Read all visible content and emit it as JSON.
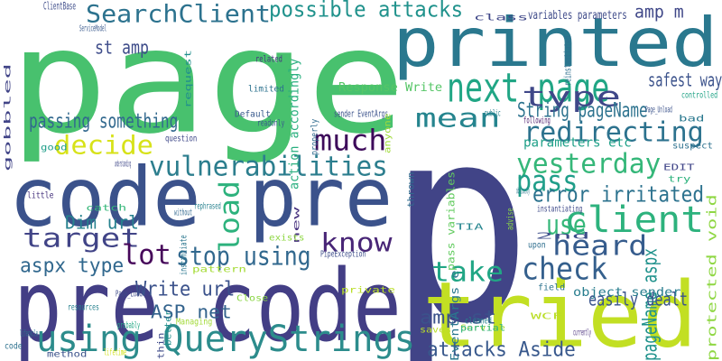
{
  "words": [
    {
      "text": "p",
      "color": "#414487"
    },
    {
      "text": "page",
      "color": "#48c16e"
    },
    {
      "text": "code pre",
      "color": "#3b528b"
    },
    {
      "text": "pre code",
      "color": "#433e85"
    },
    {
      "text": "printed",
      "color": "#2a788e"
    },
    {
      "text": "tried",
      "color": "#c2df23"
    },
    {
      "text": "using QueryStrings",
      "color": "#2c8c8c"
    },
    {
      "text": "next page",
      "color": "#21a685"
    },
    {
      "text": "vulnerabilities",
      "color": "#2c7e8e"
    },
    {
      "text": "client",
      "color": "#2db27d"
    },
    {
      "text": "SearchClient",
      "color": "#2c728e"
    },
    {
      "text": "possible attacks",
      "color": "#20928c"
    },
    {
      "text": "much",
      "color": "#3d0a5a"
    },
    {
      "text": "redirecting",
      "color": "#2c728e"
    },
    {
      "text": "yesterday",
      "color": "#35b779"
    },
    {
      "text": "mean",
      "color": "#25848e"
    },
    {
      "text": "type",
      "color": "#3f4788"
    },
    {
      "text": "decide",
      "color": "#d7e219"
    },
    {
      "text": "target",
      "color": "#414487"
    },
    {
      "text": "know",
      "color": "#482576"
    },
    {
      "text": "load",
      "color": "#2db27d"
    },
    {
      "text": "lot",
      "color": "#46075a"
    },
    {
      "text": "stop using",
      "color": "#31688e"
    },
    {
      "text": "heard",
      "color": "#365c8d"
    },
    {
      "text": "take",
      "color": "#21a685"
    },
    {
      "text": "check",
      "color": "#35608d"
    },
    {
      "text": "use",
      "color": "#35b779"
    },
    {
      "text": "pass",
      "color": "#1f9e89"
    },
    {
      "text": "error irritated",
      "color": "#2c728e"
    },
    {
      "text": "pageName aspx",
      "color": "#20928c"
    },
    {
      "text": "attacks Aside",
      "color": "#38588c"
    },
    {
      "text": "passing something",
      "color": "#31688e"
    },
    {
      "text": "String pageName",
      "color": "#2c728e"
    },
    {
      "text": "st amp",
      "color": "#3e4c8a"
    },
    {
      "text": "amp m",
      "color": "#3f4788"
    },
    {
      "text": "safest way",
      "color": "#3b528b"
    },
    {
      "text": "Dim url",
      "color": "#26818e"
    },
    {
      "text": "aspx type",
      "color": "#31688e"
    },
    {
      "text": "Write url",
      "color": "#3b528b"
    },
    {
      "text": "ASP net",
      "color": "#33638d"
    },
    {
      "text": "easily dealt",
      "color": "#3a548c"
    },
    {
      "text": "amp st",
      "color": "#3b528b"
    },
    {
      "text": "object sender",
      "color": "#287d8e"
    },
    {
      "text": "parameters etc",
      "color": "#1fa088"
    },
    {
      "text": "Response Write",
      "color": "#56c667"
    },
    {
      "text": "action accordingly",
      "color": "#29af7f"
    },
    {
      "text": "EventArgs e",
      "color": "#2a788e"
    },
    {
      "text": "pass variables",
      "color": "#62cb5f"
    },
    {
      "text": "protected void",
      "color": "#8fd744"
    },
    {
      "text": "variables parameters",
      "color": "#3e4a89"
    },
    {
      "text": "sender EventArgs",
      "color": "#3b528b"
    },
    {
      "text": "ClientBase",
      "color": "#3e4c8a"
    },
    {
      "text": "class",
      "color": "#3f4788"
    },
    {
      "text": "reinstantiated",
      "color": "#2e6f8e"
    },
    {
      "text": "ServiceModel",
      "color": "#38588c"
    },
    {
      "text": "related",
      "color": "#46337e"
    },
    {
      "text": "limited",
      "color": "#2c728e"
    },
    {
      "text": "Default",
      "color": "#38598c"
    },
    {
      "text": "readonly",
      "color": "#38598c"
    },
    {
      "text": "request",
      "color": "#218f8d"
    },
    {
      "text": "question",
      "color": "#3f4889"
    },
    {
      "text": "properly",
      "color": "#2f6b8e"
    },
    {
      "text": "anyone",
      "color": "#9fda3a"
    },
    {
      "text": "following",
      "color": "#481769"
    },
    {
      "text": "public",
      "color": "#26828e"
    },
    {
      "text": "bad",
      "color": "#2a788e"
    },
    {
      "text": "suspect",
      "color": "#2d718e"
    },
    {
      "text": "controlled",
      "color": "#20a386"
    },
    {
      "text": "Page_Unload",
      "color": "#3b528b"
    },
    {
      "text": "gobbled",
      "color": "#414487"
    },
    {
      "text": "understanding",
      "color": "#3f4788"
    },
    {
      "text": "good",
      "color": "#1f9e89"
    },
    {
      "text": "little",
      "color": "#46337e"
    },
    {
      "text": "catch",
      "color": "#35b779"
    },
    {
      "text": "rephrased",
      "color": "#26818e"
    },
    {
      "text": "without",
      "color": "#31688e"
    },
    {
      "text": "new",
      "color": "#46307e"
    },
    {
      "text": "exists",
      "color": "#8fd744"
    },
    {
      "text": "pattern",
      "color": "#a5db36"
    },
    {
      "text": "PipeException",
      "color": "#3d4d8a"
    },
    {
      "text": "instantiate",
      "color": "#2a768e"
    },
    {
      "text": "Close",
      "color": "#8bd646"
    },
    {
      "text": "private",
      "color": "#bade28"
    },
    {
      "text": "Page_Load",
      "color": "#3e4989"
    },
    {
      "text": "better",
      "color": "#218f8d"
    },
    {
      "text": "Managing",
      "color": "#a2da37"
    },
    {
      "text": "resources",
      "color": "#26818e"
    },
    {
      "text": "probably",
      "color": "#22a884"
    },
    {
      "text": "thin",
      "color": "#3e4a89"
    },
    {
      "text": "lifetime",
      "color": "#d2e21b"
    },
    {
      "text": "method",
      "color": "#3b528b"
    },
    {
      "text": "lifecycle",
      "color": "#2a788e"
    },
    {
      "text": "code",
      "color": "#2d718e"
    },
    {
      "text": "saves",
      "color": "#bade28"
    },
    {
      "text": "cleaned",
      "color": "#26828e"
    },
    {
      "text": "field",
      "color": "#2c728e"
    },
    {
      "text": "WCF",
      "color": "#bade28"
    },
    {
      "text": "Service",
      "color": "#a8db34"
    },
    {
      "text": "currently",
      "color": "#472d7b"
    },
    {
      "text": "TIA",
      "color": "#25858e"
    },
    {
      "text": "thrown",
      "color": "#2f6b8e"
    },
    {
      "text": "advise",
      "color": "#8bd646"
    },
    {
      "text": "upon",
      "color": "#2e6e8e"
    },
    {
      "text": "2nd",
      "color": "#3d4d8a"
    },
    {
      "text": "instantiating",
      "color": "#3e4989"
    },
    {
      "text": "obviously",
      "color": "#2a788e"
    },
    {
      "text": "try",
      "color": "#2db27d"
    },
    {
      "text": "EDIT",
      "color": "#404588"
    },
    {
      "text": "partial",
      "color": "#2db27d"
    },
    {
      "text": "currently",
      "color": "#472d7b"
    }
  ]
}
